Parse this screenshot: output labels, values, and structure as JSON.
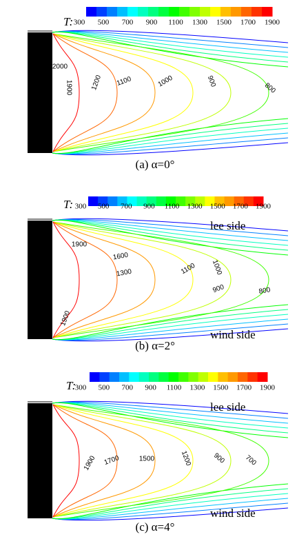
{
  "colorbar_colors": [
    "#0000ff",
    "#0040ff",
    "#0080ff",
    "#00bfff",
    "#00ffff",
    "#00ffbf",
    "#00ff80",
    "#00ff40",
    "#00ff00",
    "#40ff00",
    "#80ff00",
    "#bfff00",
    "#ffff00",
    "#ffbf00",
    "#ff9900",
    "#ff6600",
    "#ff3300",
    "#ff0000"
  ],
  "panels": [
    {
      "symbol": "T:",
      "colorbar_labels": [
        "300",
        "500",
        "700",
        "900",
        "1100",
        "1300",
        "1500",
        "1700",
        "1900"
      ],
      "contour_labels": [
        "2000",
        "1900",
        "1200",
        "1100",
        "1000",
        "900",
        "800"
      ],
      "caption": "(a) α=0°"
    },
    {
      "symbol": "T:",
      "colorbar_labels": [
        "300",
        "500",
        "700",
        "900",
        "1100",
        "1300",
        "1500",
        "1700",
        "1900"
      ],
      "contour_labels": [
        "1900",
        "1600",
        "1300",
        "1100",
        "1000",
        "900",
        "800",
        "1900"
      ],
      "lee_label": "lee side",
      "wind_label": "wind side",
      "caption": "(b) α=2°"
    },
    {
      "symbol": "T:",
      "colorbar_labels": [
        "300",
        "500",
        "700",
        "900",
        "1100",
        "1300",
        "1500",
        "1700",
        "1900"
      ],
      "contour_labels": [
        "1900",
        "1700",
        "1500",
        "1200",
        "900",
        "700"
      ],
      "lee_label": "lee side",
      "wind_label": "wind side",
      "caption": "(c) α=4°"
    }
  ]
}
